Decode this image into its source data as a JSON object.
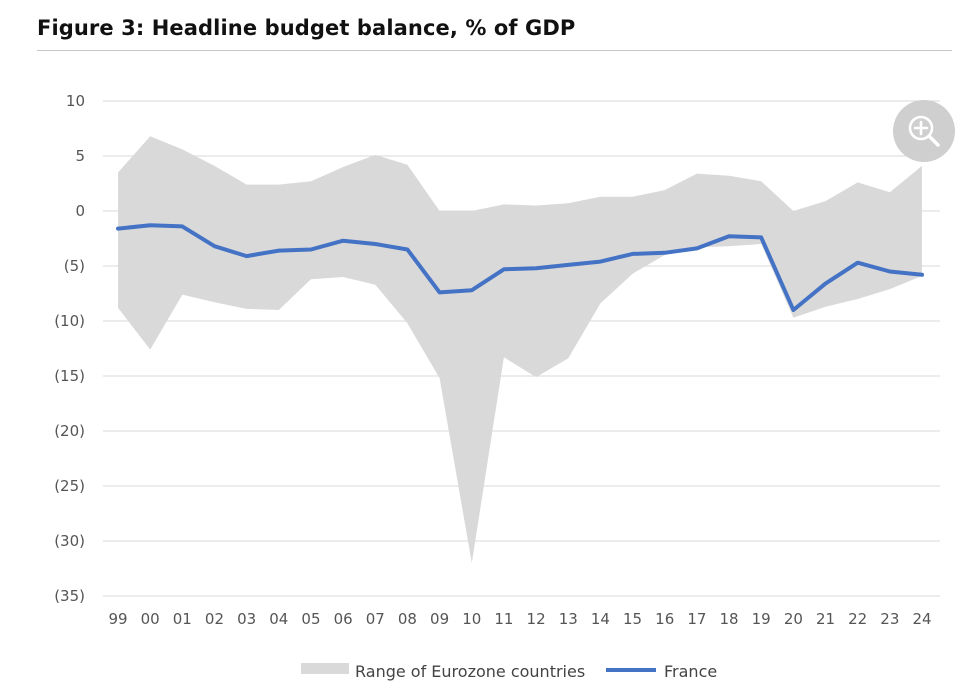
{
  "page": {
    "title": "Figure 3: Headline budget balance, % of GDP"
  },
  "zoom_button": {
    "icon": "zoom-in-icon"
  },
  "colors": {
    "range": "#d9d9d9",
    "france": "#4472c4",
    "grid": "#d9d9d9",
    "zoom_bg": "#cfcfcf"
  },
  "chart_data": {
    "type": "line",
    "title": "Figure 3: Headline budget balance, % of GDP",
    "xlabel": "",
    "ylabel": "",
    "categories": [
      "99",
      "00",
      "01",
      "02",
      "03",
      "04",
      "05",
      "06",
      "07",
      "08",
      "09",
      "10",
      "11",
      "12",
      "13",
      "14",
      "15",
      "16",
      "17",
      "18",
      "19",
      "20",
      "21",
      "22",
      "23",
      "24"
    ],
    "ylim": [
      -35,
      10
    ],
    "yticks": [
      10,
      5,
      0,
      -5,
      -10,
      -15,
      -20,
      -25,
      -30,
      -35
    ],
    "ytick_labels": [
      "10",
      "5",
      "0",
      "(5)",
      "(10)",
      "(15)",
      "(20)",
      "(25)",
      "(30)",
      "(35)"
    ],
    "grid": true,
    "legend_position": "bottom-center",
    "series": [
      {
        "name": "Range of Eurozone countries",
        "type": "area-range",
        "upper": [
          3.5,
          6.8,
          5.6,
          4.1,
          2.4,
          2.4,
          2.7,
          4.0,
          5.1,
          4.2,
          0.0,
          0.0,
          0.6,
          0.5,
          0.7,
          1.3,
          1.3,
          1.9,
          3.4,
          3.2,
          2.7,
          0.0,
          0.9,
          2.6,
          1.7,
          4.1
        ],
        "lower": [
          -8.8,
          -12.6,
          -7.6,
          -8.3,
          -8.9,
          -9.0,
          -6.2,
          -6.0,
          -6.7,
          -10.2,
          -15.2,
          -32.0,
          -13.3,
          -15.1,
          -13.4,
          -8.4,
          -5.7,
          -4.0,
          -3.3,
          -3.2,
          -3.0,
          -9.7,
          -8.7,
          -8.0,
          -7.1,
          -5.9
        ]
      },
      {
        "name": "France",
        "type": "line",
        "values": [
          -1.6,
          -1.3,
          -1.4,
          -3.2,
          -4.1,
          -3.6,
          -3.5,
          -2.7,
          -3.0,
          -3.5,
          -7.4,
          -7.2,
          -5.3,
          -5.2,
          -4.9,
          -4.6,
          -3.9,
          -3.8,
          -3.4,
          -2.3,
          -2.4,
          -9.0,
          -6.6,
          -4.7,
          -5.5,
          -5.8
        ]
      }
    ]
  }
}
